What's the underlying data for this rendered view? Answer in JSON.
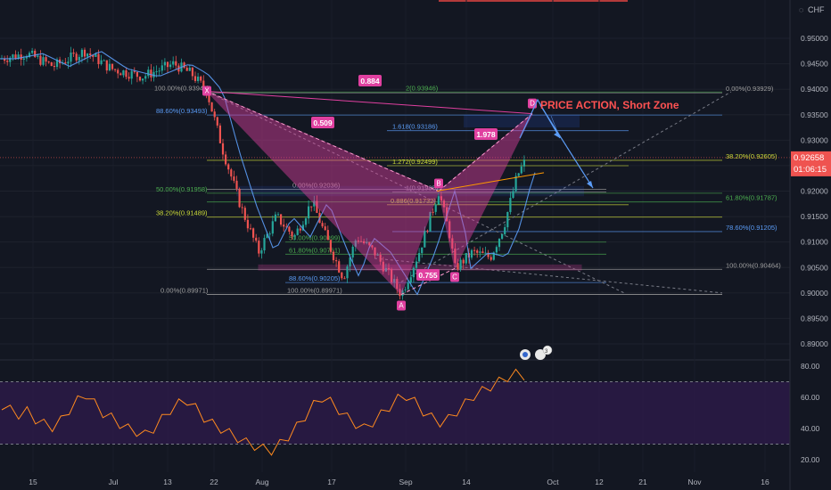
{
  "chart_data": [
    {
      "type": "candlestick",
      "title": "",
      "currency": "CHF",
      "yticks": [
        "0.95000",
        "0.94500",
        "0.94000",
        "0.93500",
        "0.93000",
        "0.92500",
        "0.92000",
        "0.91500",
        "0.91000",
        "0.90500",
        "0.90000",
        "0.89500",
        "0.89000"
      ],
      "ylim": [
        0.887,
        0.9635
      ],
      "xticks": [
        "15",
        "Jul",
        "13",
        "22",
        "Aug",
        "17",
        "Sep",
        "14",
        "Oct",
        "12",
        "21",
        "Nov",
        "16"
      ],
      "last_price": "0.92658",
      "countdown": "01:06:15",
      "pattern_points": [
        {
          "label": "X",
          "value": 0.9396
        },
        {
          "label": "A",
          "value": 0.8997
        },
        {
          "label": "B",
          "value": 0.92
        },
        {
          "label": "C",
          "value": 0.9048
        },
        {
          "label": "D",
          "value": 0.9352
        }
      ],
      "pattern_ratios": [
        "0.884",
        "0.509",
        "1.978",
        "0.755"
      ],
      "annotation": "PRICE ACTION, Short Zone",
      "fib_levels": [
        {
          "text": "2(0.93946)",
          "value": 0.93946
        },
        {
          "text": "0.00%(0.93929)",
          "value": 0.93929
        },
        {
          "text": "100.00%(0.93942)",
          "value": 0.93942
        },
        {
          "text": "88.60%(0.93493)",
          "value": 0.93493
        },
        {
          "text": "1.618(0.93186)",
          "value": 0.93186
        },
        {
          "text": "1.272(0.92499)",
          "value": 0.92499
        },
        {
          "text": "38.20%(0.92605)",
          "value": 0.92605
        },
        {
          "text": "0.00%(0.92036)",
          "value": 0.92036
        },
        {
          "text": "1(0.91985)",
          "value": 0.91985
        },
        {
          "text": "50.00%(0.91958)",
          "value": 0.91958
        },
        {
          "text": "0.886(0.91732)",
          "value": 0.91732
        },
        {
          "text": "61.80%(0.91787)",
          "value": 0.91787
        },
        {
          "text": "38.20%(0.91489)",
          "value": 0.91489
        },
        {
          "text": "78.60%(0.91205)",
          "value": 0.91205
        },
        {
          "text": "50.00%(0.90999)",
          "value": 0.90999
        },
        {
          "text": "61.80%(0.90761)",
          "value": 0.90761
        },
        {
          "text": "100.00%(0.90464)",
          "value": 0.90464
        },
        {
          "text": "88.60%(0.90205)",
          "value": 0.90205
        },
        {
          "text": "0.00%(0.89971)",
          "value": 0.89971
        },
        {
          "text": "100.00%(0.89971)",
          "value": 0.89971
        }
      ]
    },
    {
      "type": "line",
      "title": "",
      "yticks": [
        "80.00",
        "60.00",
        "40.00",
        "20.00"
      ],
      "ylim": [
        13,
        85
      ],
      "band": [
        30,
        70
      ],
      "values": [
        55,
        52,
        49,
        51,
        46,
        43,
        41,
        45,
        52,
        58,
        62,
        56,
        50,
        47,
        43,
        40,
        38,
        36,
        40,
        46,
        52,
        56,
        58,
        53,
        47,
        43,
        40,
        37,
        34,
        31,
        29,
        27,
        26,
        30,
        35,
        41,
        48,
        55,
        60,
        57,
        52,
        47,
        43,
        40,
        44,
        49,
        54,
        59,
        61,
        57,
        51,
        47,
        44,
        46,
        51,
        56,
        61,
        64,
        67,
        70,
        73,
        75,
        74
      ]
    }
  ],
  "colors": {
    "accent": "#e040a0",
    "up": "#26a69a",
    "down": "#ef5350",
    "fib": "#5b9cf6",
    "rsi": "#ff8a1f"
  }
}
